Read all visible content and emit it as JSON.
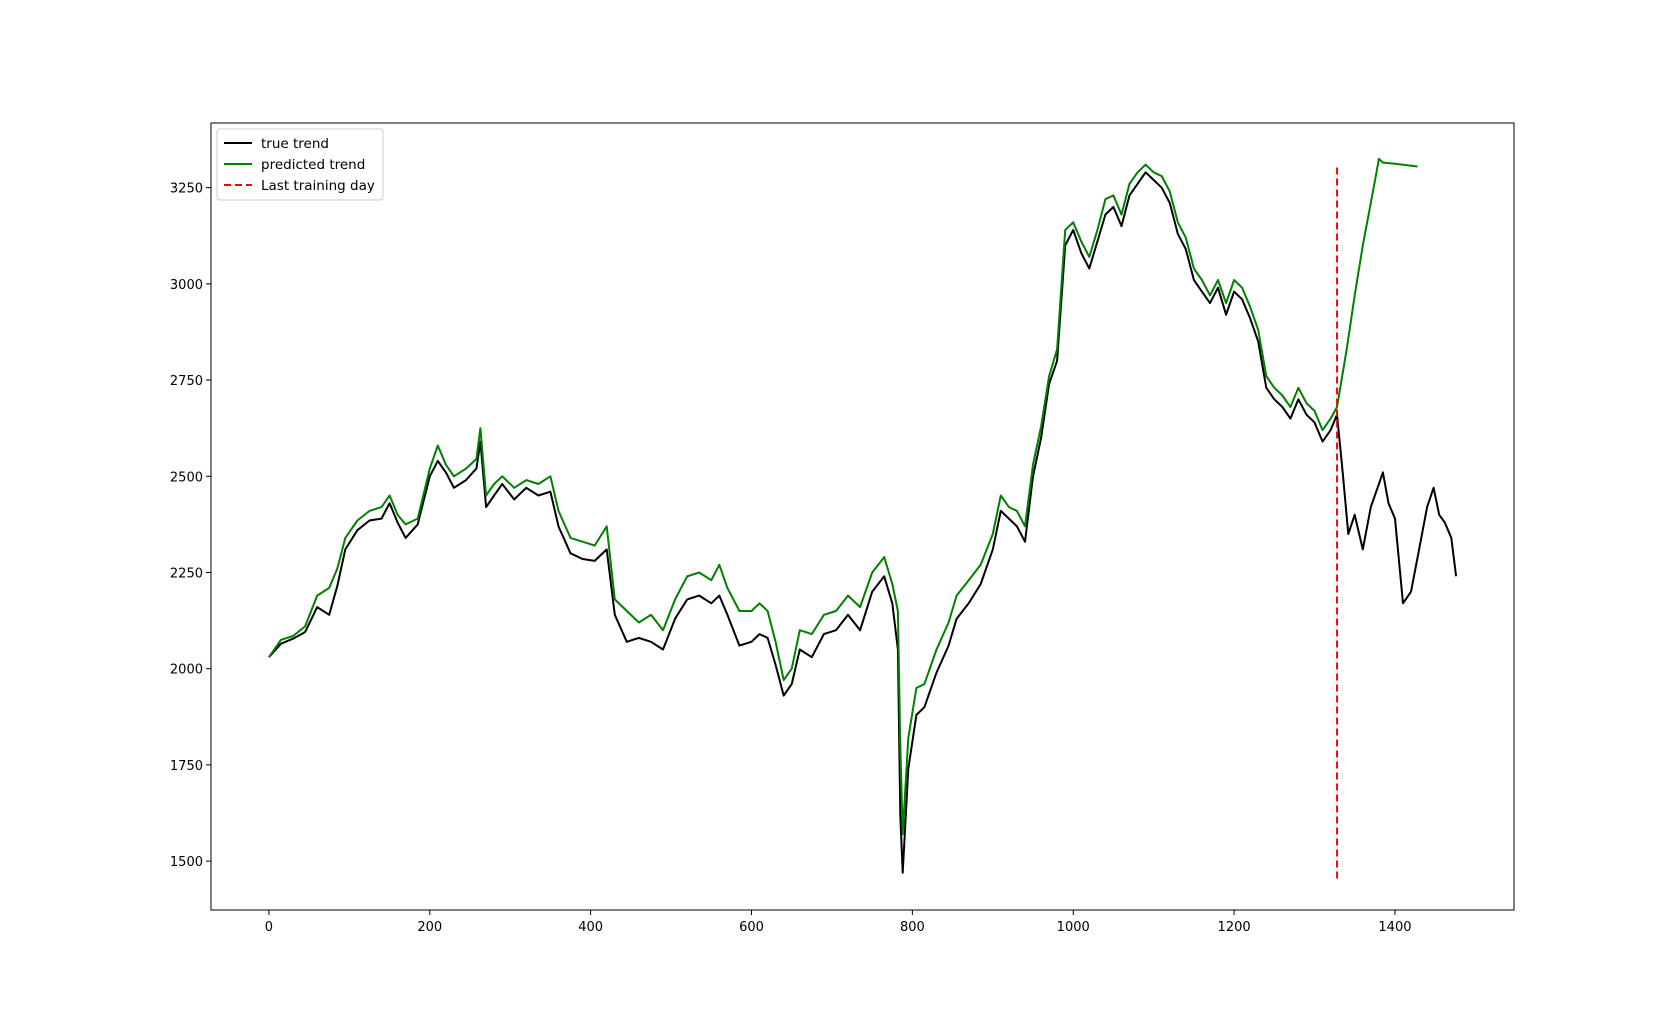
{
  "chart_data": {
    "type": "line",
    "title": "",
    "xlabel": "",
    "ylabel": "",
    "xlim": [
      -72,
      1548
    ],
    "ylim": [
      1373,
      3418
    ],
    "x_ticks": [
      0,
      200,
      400,
      600,
      800,
      1000,
      1200,
      1400
    ],
    "y_ticks": [
      1500,
      1750,
      2000,
      2250,
      2500,
      2750,
      3000,
      3250
    ],
    "grid": false,
    "legend_position": "top-left",
    "colors": {
      "true_trend": "#000000",
      "predicted_trend": "#008000",
      "last_training_day": "#ff0000"
    },
    "series": [
      {
        "name": "true trend",
        "key": "true_trend",
        "style": "solid",
        "points": [
          [
            0,
            2030
          ],
          [
            15,
            2065
          ],
          [
            30,
            2078
          ],
          [
            45,
            2095
          ],
          [
            60,
            2160
          ],
          [
            75,
            2140
          ],
          [
            85,
            2215
          ],
          [
            95,
            2310
          ],
          [
            110,
            2360
          ],
          [
            125,
            2385
          ],
          [
            140,
            2390
          ],
          [
            150,
            2430
          ],
          [
            160,
            2380
          ],
          [
            170,
            2340
          ],
          [
            185,
            2375
          ],
          [
            200,
            2500
          ],
          [
            210,
            2540
          ],
          [
            220,
            2510
          ],
          [
            230,
            2470
          ],
          [
            245,
            2490
          ],
          [
            258,
            2520
          ],
          [
            263,
            2590
          ],
          [
            270,
            2420
          ],
          [
            280,
            2450
          ],
          [
            290,
            2480
          ],
          [
            305,
            2440
          ],
          [
            320,
            2470
          ],
          [
            335,
            2450
          ],
          [
            350,
            2460
          ],
          [
            360,
            2370
          ],
          [
            375,
            2300
          ],
          [
            390,
            2285
          ],
          [
            405,
            2280
          ],
          [
            420,
            2310
          ],
          [
            430,
            2140
          ],
          [
            445,
            2070
          ],
          [
            460,
            2080
          ],
          [
            475,
            2070
          ],
          [
            490,
            2050
          ],
          [
            505,
            2130
          ],
          [
            520,
            2180
          ],
          [
            535,
            2190
          ],
          [
            550,
            2170
          ],
          [
            560,
            2190
          ],
          [
            570,
            2140
          ],
          [
            585,
            2060
          ],
          [
            600,
            2070
          ],
          [
            610,
            2090
          ],
          [
            620,
            2080
          ],
          [
            630,
            2010
          ],
          [
            640,
            1930
          ],
          [
            650,
            1960
          ],
          [
            660,
            2050
          ],
          [
            675,
            2030
          ],
          [
            690,
            2090
          ],
          [
            705,
            2100
          ],
          [
            720,
            2140
          ],
          [
            735,
            2100
          ],
          [
            750,
            2200
          ],
          [
            765,
            2240
          ],
          [
            775,
            2170
          ],
          [
            782,
            2050
          ],
          [
            785,
            1620
          ],
          [
            788,
            1470
          ],
          [
            795,
            1740
          ],
          [
            805,
            1880
          ],
          [
            815,
            1900
          ],
          [
            830,
            1990
          ],
          [
            845,
            2060
          ],
          [
            855,
            2130
          ],
          [
            870,
            2170
          ],
          [
            885,
            2220
          ],
          [
            900,
            2310
          ],
          [
            910,
            2410
          ],
          [
            920,
            2390
          ],
          [
            930,
            2370
          ],
          [
            940,
            2330
          ],
          [
            950,
            2500
          ],
          [
            960,
            2600
          ],
          [
            970,
            2740
          ],
          [
            980,
            2800
          ],
          [
            990,
            3100
          ],
          [
            1000,
            3140
          ],
          [
            1010,
            3080
          ],
          [
            1020,
            3040
          ],
          [
            1030,
            3110
          ],
          [
            1040,
            3180
          ],
          [
            1050,
            3200
          ],
          [
            1060,
            3150
          ],
          [
            1070,
            3230
          ],
          [
            1080,
            3260
          ],
          [
            1090,
            3290
          ],
          [
            1100,
            3270
          ],
          [
            1110,
            3250
          ],
          [
            1120,
            3210
          ],
          [
            1130,
            3130
          ],
          [
            1140,
            3090
          ],
          [
            1150,
            3010
          ],
          [
            1160,
            2980
          ],
          [
            1170,
            2950
          ],
          [
            1180,
            2990
          ],
          [
            1190,
            2920
          ],
          [
            1200,
            2980
          ],
          [
            1210,
            2960
          ],
          [
            1220,
            2910
          ],
          [
            1230,
            2850
          ],
          [
            1240,
            2730
          ],
          [
            1250,
            2700
          ],
          [
            1260,
            2680
          ],
          [
            1270,
            2650
          ],
          [
            1280,
            2700
          ],
          [
            1290,
            2660
          ],
          [
            1300,
            2640
          ],
          [
            1310,
            2590
          ],
          [
            1320,
            2620
          ],
          [
            1328,
            2660
          ],
          [
            1335,
            2510
          ],
          [
            1342,
            2350
          ],
          [
            1350,
            2400
          ],
          [
            1360,
            2310
          ],
          [
            1370,
            2420
          ],
          [
            1380,
            2480
          ],
          [
            1385,
            2510
          ],
          [
            1392,
            2430
          ],
          [
            1400,
            2390
          ],
          [
            1410,
            2170
          ],
          [
            1420,
            2200
          ],
          [
            1430,
            2310
          ],
          [
            1440,
            2420
          ],
          [
            1448,
            2470
          ],
          [
            1455,
            2400
          ],
          [
            1462,
            2380
          ],
          [
            1470,
            2340
          ],
          [
            1476,
            2240
          ]
        ]
      },
      {
        "name": "predicted trend",
        "key": "predicted_trend",
        "style": "solid",
        "points": [
          [
            0,
            2030
          ],
          [
            15,
            2075
          ],
          [
            30,
            2085
          ],
          [
            45,
            2110
          ],
          [
            60,
            2190
          ],
          [
            75,
            2210
          ],
          [
            85,
            2260
          ],
          [
            95,
            2340
          ],
          [
            110,
            2385
          ],
          [
            125,
            2410
          ],
          [
            140,
            2420
          ],
          [
            150,
            2450
          ],
          [
            160,
            2400
          ],
          [
            170,
            2375
          ],
          [
            185,
            2390
          ],
          [
            200,
            2520
          ],
          [
            210,
            2580
          ],
          [
            220,
            2530
          ],
          [
            230,
            2500
          ],
          [
            245,
            2520
          ],
          [
            258,
            2545
          ],
          [
            263,
            2625
          ],
          [
            270,
            2450
          ],
          [
            280,
            2480
          ],
          [
            290,
            2500
          ],
          [
            305,
            2470
          ],
          [
            320,
            2490
          ],
          [
            335,
            2480
          ],
          [
            350,
            2500
          ],
          [
            360,
            2410
          ],
          [
            375,
            2340
          ],
          [
            390,
            2330
          ],
          [
            405,
            2320
          ],
          [
            420,
            2370
          ],
          [
            430,
            2180
          ],
          [
            445,
            2150
          ],
          [
            460,
            2120
          ],
          [
            475,
            2140
          ],
          [
            490,
            2100
          ],
          [
            505,
            2180
          ],
          [
            520,
            2240
          ],
          [
            535,
            2250
          ],
          [
            550,
            2230
          ],
          [
            560,
            2270
          ],
          [
            570,
            2210
          ],
          [
            585,
            2150
          ],
          [
            600,
            2150
          ],
          [
            610,
            2170
          ],
          [
            620,
            2150
          ],
          [
            630,
            2070
          ],
          [
            640,
            1970
          ],
          [
            650,
            2000
          ],
          [
            660,
            2100
          ],
          [
            675,
            2090
          ],
          [
            690,
            2140
          ],
          [
            705,
            2150
          ],
          [
            720,
            2190
          ],
          [
            735,
            2160
          ],
          [
            750,
            2250
          ],
          [
            765,
            2290
          ],
          [
            775,
            2220
          ],
          [
            782,
            2150
          ],
          [
            785,
            1800
          ],
          [
            788,
            1570
          ],
          [
            795,
            1820
          ],
          [
            805,
            1950
          ],
          [
            815,
            1960
          ],
          [
            830,
            2050
          ],
          [
            845,
            2120
          ],
          [
            855,
            2190
          ],
          [
            870,
            2230
          ],
          [
            885,
            2270
          ],
          [
            900,
            2350
          ],
          [
            910,
            2450
          ],
          [
            920,
            2420
          ],
          [
            930,
            2410
          ],
          [
            940,
            2370
          ],
          [
            950,
            2530
          ],
          [
            960,
            2630
          ],
          [
            970,
            2760
          ],
          [
            980,
            2830
          ],
          [
            990,
            3140
          ],
          [
            1000,
            3160
          ],
          [
            1010,
            3110
          ],
          [
            1020,
            3070
          ],
          [
            1030,
            3140
          ],
          [
            1040,
            3220
          ],
          [
            1050,
            3230
          ],
          [
            1060,
            3180
          ],
          [
            1070,
            3260
          ],
          [
            1080,
            3290
          ],
          [
            1090,
            3310
          ],
          [
            1100,
            3290
          ],
          [
            1110,
            3280
          ],
          [
            1120,
            3240
          ],
          [
            1130,
            3160
          ],
          [
            1140,
            3120
          ],
          [
            1150,
            3040
          ],
          [
            1160,
            3010
          ],
          [
            1170,
            2970
          ],
          [
            1180,
            3010
          ],
          [
            1190,
            2950
          ],
          [
            1200,
            3010
          ],
          [
            1210,
            2990
          ],
          [
            1220,
            2940
          ],
          [
            1230,
            2880
          ],
          [
            1240,
            2760
          ],
          [
            1250,
            2730
          ],
          [
            1260,
            2710
          ],
          [
            1270,
            2680
          ],
          [
            1280,
            2730
          ],
          [
            1290,
            2690
          ],
          [
            1300,
            2670
          ],
          [
            1310,
            2620
          ],
          [
            1320,
            2650
          ],
          [
            1328,
            2680
          ],
          [
            1340,
            2830
          ],
          [
            1350,
            2970
          ],
          [
            1360,
            3100
          ],
          [
            1370,
            3210
          ],
          [
            1377,
            3290
          ],
          [
            1380,
            3325
          ],
          [
            1385,
            3315
          ],
          [
            1400,
            3312
          ],
          [
            1428,
            3305
          ]
        ]
      },
      {
        "name": "Last training day",
        "key": "last_training_day",
        "style": "dashed",
        "x_value": 1328,
        "y_range": [
          1455,
          3310
        ]
      }
    ]
  }
}
